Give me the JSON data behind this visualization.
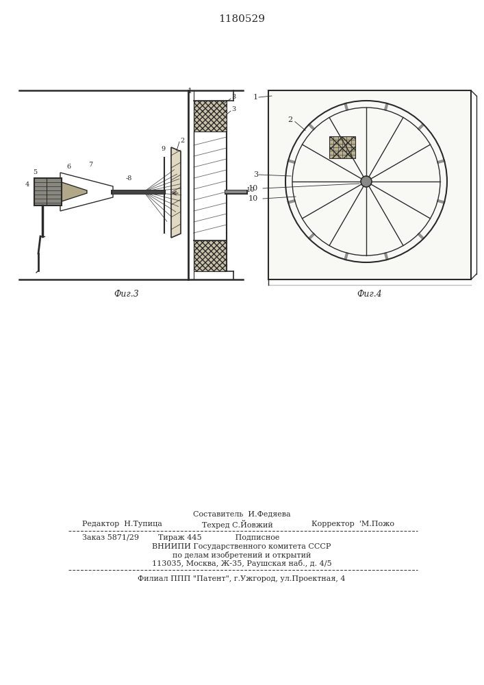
{
  "title": "1180529",
  "fig3_label": "Фиг.3",
  "fig4_label": "Фиг.4",
  "footer_line1": "Составитель  И.Федяева",
  "footer_line2_left": "Редактор  Н.Тупица",
  "footer_line2_mid": "Техред С.Йовжий",
  "footer_line2_right": "Корректор  'М.Пожо",
  "footer_line3": "Заказ 5871/29        Тираж 445              Подписное",
  "footer_line4": "ВНИИПИ Государственного комитета СССР",
  "footer_line5": "по делам изобретений и открытий",
  "footer_line6": "113035, Москва, Ж-35, Раушская наб., д. 4/5",
  "footer_line7": "Филиал ППП \"Патент\", г.Ужгород, ул.Проектная, 4",
  "bg_color": "#ffffff",
  "line_color": "#2a2a2a"
}
